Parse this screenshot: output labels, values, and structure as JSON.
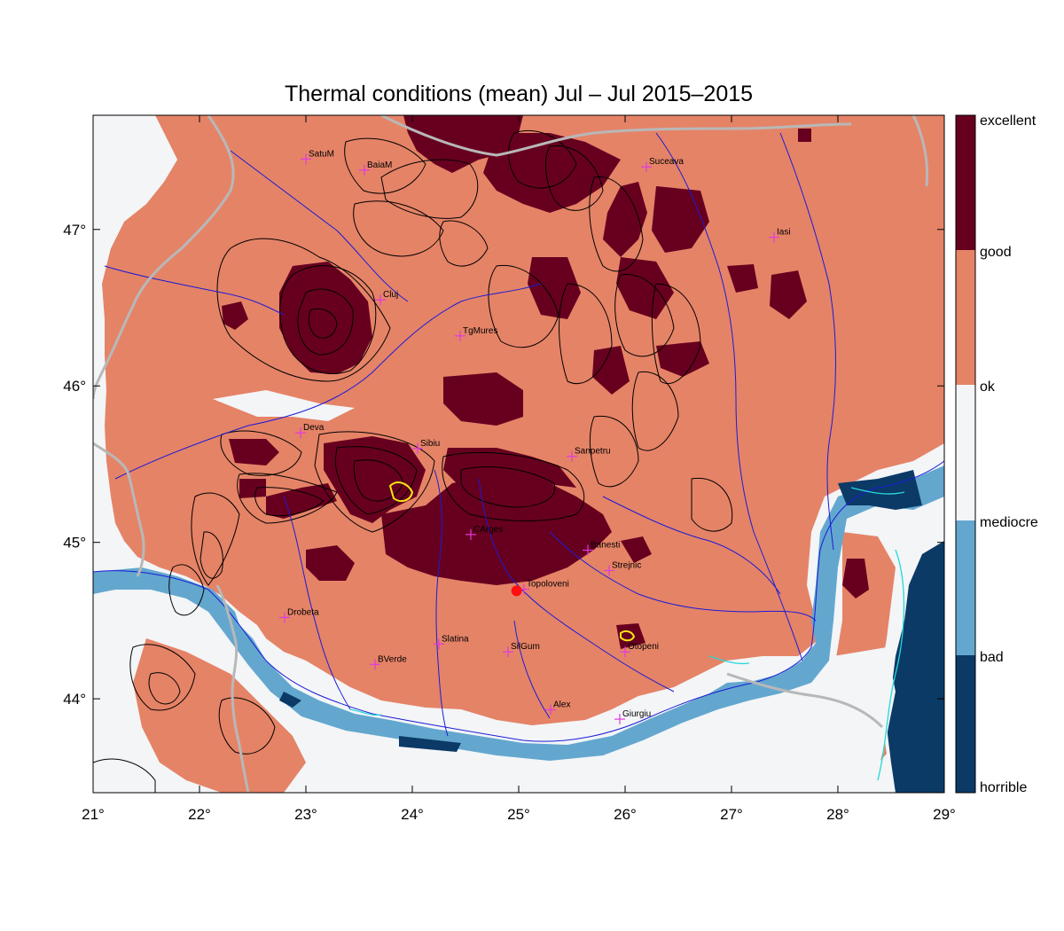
{
  "title": "Thermal conditions (mean) Jul – Jul  2015–2015",
  "colors": {
    "excellent": "#67001f",
    "good": "#e58367",
    "ok": "#f3f5f7",
    "mediocre": "#63a7cf",
    "horrible": "#0b3a67",
    "river": "#1b1bd6",
    "border": "#b8b8b8",
    "contour": "#000000",
    "city": "#e03ae0",
    "marker": "#ff1010"
  },
  "legend": {
    "labels": [
      "excellent",
      "good",
      "ok",
      "mediocre",
      "bad",
      "horrible"
    ]
  },
  "axes": {
    "lon_ticks": [
      "21°",
      "22°",
      "23°",
      "24°",
      "25°",
      "26°",
      "27°",
      "28°",
      "29°"
    ],
    "lat_ticks": [
      "47°",
      "46°",
      "45°",
      "44°"
    ]
  },
  "cities": [
    {
      "name": "SatuM",
      "lon": 23.0,
      "lat": 47.45
    },
    {
      "name": "BaiaM",
      "lon": 23.55,
      "lat": 47.38
    },
    {
      "name": "Suceava",
      "lon": 26.2,
      "lat": 47.4
    },
    {
      "name": "Iasi",
      "lon": 27.4,
      "lat": 46.95
    },
    {
      "name": "Cluj",
      "lon": 23.7,
      "lat": 46.55
    },
    {
      "name": "TgMures",
      "lon": 24.45,
      "lat": 46.32
    },
    {
      "name": "Deva",
      "lon": 22.95,
      "lat": 45.7
    },
    {
      "name": "Sibiu",
      "lon": 24.05,
      "lat": 45.6
    },
    {
      "name": "Sanpetru",
      "lon": 25.5,
      "lat": 45.55
    },
    {
      "name": "CArges",
      "lon": 24.55,
      "lat": 45.05
    },
    {
      "name": "Banesti",
      "lon": 25.65,
      "lat": 44.95
    },
    {
      "name": "Strejnic",
      "lon": 25.85,
      "lat": 44.82
    },
    {
      "name": "Topoloveni",
      "lon": 25.05,
      "lat": 44.7
    },
    {
      "name": "Drobeta",
      "lon": 22.8,
      "lat": 44.52
    },
    {
      "name": "Slatina",
      "lon": 24.25,
      "lat": 44.35
    },
    {
      "name": "SilGum",
      "lon": 24.9,
      "lat": 44.3
    },
    {
      "name": "Otopeni",
      "lon": 26.0,
      "lat": 44.3
    },
    {
      "name": "BVerde",
      "lon": 23.65,
      "lat": 44.22
    },
    {
      "name": "Alex",
      "lon": 25.3,
      "lat": 43.93
    },
    {
      "name": "Giurgiu",
      "lon": 25.95,
      "lat": 43.87
    }
  ],
  "marker": {
    "lon": 24.98,
    "lat": 44.69
  }
}
